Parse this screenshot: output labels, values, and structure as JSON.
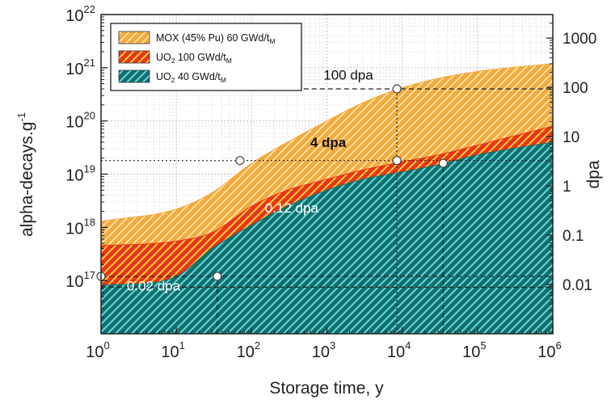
{
  "chart_data": {
    "type": "area",
    "xlabel": "Storage time, y",
    "ylabel": "alpha-decays.g",
    "ylabel_sup": "-1",
    "y2label": "dpa",
    "x_scale": "log",
    "y_scale": "log",
    "xlim": [
      1,
      1000000
    ],
    "ylim": [
      1e+16,
      1e+22
    ],
    "y2lim": [
      0.001,
      3000
    ],
    "grid": true,
    "legend_position": "top-left",
    "x_ticks": [
      {
        "value": 1,
        "base": "10",
        "exp": "0"
      },
      {
        "value": 10,
        "base": "10",
        "exp": "1"
      },
      {
        "value": 100,
        "base": "10",
        "exp": "2"
      },
      {
        "value": 1000,
        "base": "10",
        "exp": "3"
      },
      {
        "value": 10000,
        "base": "10",
        "exp": "4"
      },
      {
        "value": 100000,
        "base": "10",
        "exp": "5"
      },
      {
        "value": 1000000,
        "base": "10",
        "exp": "6"
      }
    ],
    "y_ticks": [
      {
        "value": 1e+17,
        "base": "10",
        "exp": "17"
      },
      {
        "value": 1e+18,
        "base": "10",
        "exp": "18"
      },
      {
        "value": 1e+19,
        "base": "10",
        "exp": "19"
      },
      {
        "value": 1e+20,
        "base": "10",
        "exp": "20"
      },
      {
        "value": 1e+21,
        "base": "10",
        "exp": "21"
      },
      {
        "value": 1e+22,
        "base": "10",
        "exp": "22"
      }
    ],
    "y2_ticks": [
      {
        "value": 0.01,
        "label": "0.01"
      },
      {
        "value": 0.1,
        "label": "0.1"
      },
      {
        "value": 1,
        "label": "1"
      },
      {
        "value": 10,
        "label": "10"
      },
      {
        "value": 100,
        "label": "100"
      },
      {
        "value": 1000,
        "label": "1000"
      }
    ],
    "series": [
      {
        "name": "MOX (45% Pu) 60 GWd/t",
        "name_sub": "M",
        "color": "#f4a93c",
        "stripe": "#fbe3a6",
        "x": [
          1,
          10,
          30,
          100,
          300,
          1000,
          3000,
          10000,
          30000,
          100000,
          1000000
        ],
        "y": [
          1.3e+18,
          2.2e+18,
          4.5e+18,
          1.6e+19,
          4e+19,
          1e+20,
          2.2e+20,
          4.2e+20,
          6.3e+20,
          8.5e+20,
          1.2e+21
        ]
      },
      {
        "name": "UO2 100 GWd/t",
        "name_sub": "M",
        "color": "#e8341a",
        "stripe": "#ffd13a",
        "x": [
          1,
          10,
          30,
          100,
          300,
          1000,
          3000,
          10000,
          30000,
          100000,
          1000000
        ],
        "y": [
          4.5e+17,
          5.5e+17,
          8e+17,
          2.5e+18,
          5e+18,
          8e+18,
          1.2e+19,
          1.7e+19,
          2.3e+19,
          3.5e+19,
          8e+19
        ]
      },
      {
        "name": "UO2 40 GWd/t",
        "name_sub": "M",
        "color": "#156f69",
        "stripe": "#5fd9e6",
        "x": [
          1,
          10,
          30,
          100,
          300,
          1000,
          3000,
          10000,
          30000,
          100000,
          1000000
        ],
        "y": [
          8e+16,
          1.2e+17,
          4e+17,
          1.1e+18,
          2.5e+18,
          5e+18,
          8e+18,
          1.1e+19,
          1.5e+19,
          2.3e+19,
          4e+19
        ]
      }
    ],
    "legend_entries": [
      {
        "prefix": "MOX (45% Pu) 60 GWd/t",
        "sub_after_prefix": "",
        "suffix": "",
        "tail_sub": "M",
        "color": "#f4a93c",
        "stripe": "#fbe3a6"
      },
      {
        "prefix": "UO",
        "sub_after_prefix": "2",
        "suffix": " 100 GWd/t",
        "tail_sub": "M",
        "color": "#e8341a",
        "stripe": "#ffd13a"
      },
      {
        "prefix": "UO",
        "sub_after_prefix": "2",
        "suffix": " 40 GWd/t",
        "tail_sub": "M",
        "color": "#156f69",
        "stripe": "#5fd9e6"
      }
    ],
    "markers": [
      {
        "x": 1,
        "y": 1.2e+17
      },
      {
        "x": 35,
        "y": 1.2e+17
      },
      {
        "x": 70,
        "y": 1.8e+19
      },
      {
        "x": 8500,
        "y": 1.8e+19
      },
      {
        "x": 8500,
        "y": 4e+20
      },
      {
        "x": 35000,
        "y": 1.6e+19
      }
    ],
    "reference_lines": [
      {
        "label": "0.02 dpa",
        "y": 7.5e+16,
        "x_start": 1,
        "x_end": 1000000,
        "style": "dashed",
        "label_x": 2.2,
        "label_y": 6.5e+16,
        "label_color": "#ffffff",
        "label_bold": false
      },
      {
        "label": "0.12 dpa",
        "y": 1.2e+17,
        "x_start": 1,
        "x_end": 1000000,
        "style": "dashed",
        "label_x": 150,
        "label_y": 1.9e+18,
        "label_color": "#ffffff",
        "label_bold": false
      },
      {
        "label": "4 dpa",
        "y": 1.8e+19,
        "x_start": 1,
        "x_end": 1000000,
        "style": "dotted",
        "label_x": 600,
        "label_y": 3.2e+19,
        "label_color": "#111111",
        "label_bold": true
      },
      {
        "label": "100 dpa",
        "y": 4e+20,
        "x_start": 300,
        "x_end": 1000000,
        "style": "dashed",
        "label_x": 900,
        "label_y": 6e+20,
        "label_color": "#111111",
        "label_bold": false
      }
    ],
    "vertical_lines": [
      {
        "x": 35,
        "y_start": 1e+16,
        "y_end": 1.2e+17,
        "style": "dashed"
      },
      {
        "x": 8500,
        "y_start": 1e+16,
        "y_end": 4e+20,
        "style": "dotted"
      },
      {
        "x": 35000,
        "y_start": 1e+16,
        "y_end": 1.6e+19,
        "style": "dashed"
      }
    ]
  }
}
